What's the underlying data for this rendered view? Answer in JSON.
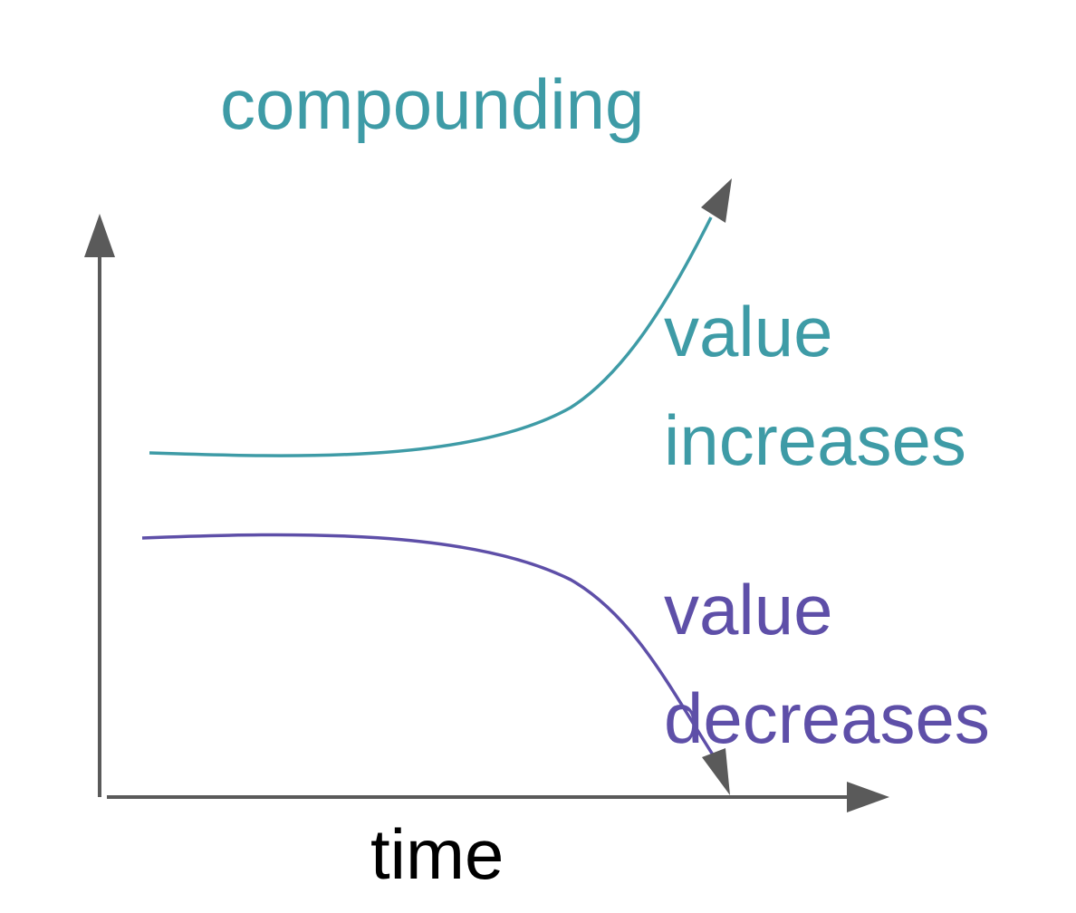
{
  "title": "compounding",
  "x_axis_label": "time",
  "curves": {
    "increase": {
      "label_line1": "value",
      "label_line2": "increases"
    },
    "decrease": {
      "label_line1": "value",
      "label_line2": "decreases"
    }
  },
  "colors": {
    "increase": "#3e9ba6",
    "decrease": "#5e4fa8",
    "axis": "#5a5a5a",
    "axis_label": "#000000"
  }
}
